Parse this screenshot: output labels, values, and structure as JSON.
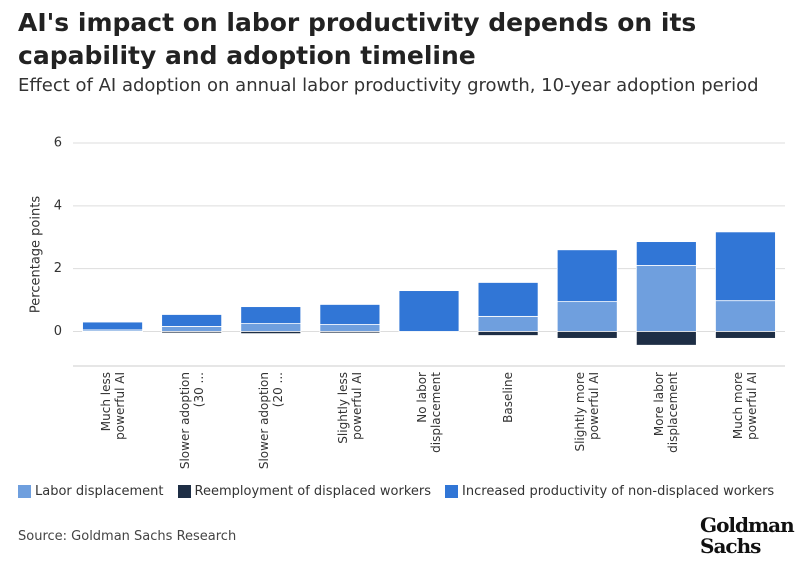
{
  "chart_data": {
    "type": "stacked_bar",
    "title": "AI's impact on labor productivity depends on its capability and adoption timeline",
    "subtitle": "Effect of AI adoption on annual labor productivity growth, 10-year adoption period",
    "y_label": "Percentage points",
    "source": "Source: Goldman Sachs Research",
    "logo": [
      "Goldman",
      "Sachs"
    ],
    "categories": [
      "Much less powerful AI",
      "Slower adoption (30 ...",
      "Slower adoption (20 ...",
      "Slightly less powerful AI",
      "No labor displacement",
      "Baseline",
      "Slightly more powerful AI",
      "More labor displacement",
      "Much more powerful AI"
    ],
    "series": [
      {
        "name": "Labor displacement",
        "color": "#6f9fde",
        "values": [
          0.05,
          0.16,
          0.25,
          0.22,
          0,
          0.48,
          0.95,
          2.1,
          0.98
        ]
      },
      {
        "name": "Reemployment of displaced workers",
        "color": "#1e2e45",
        "values": [
          -0.02,
          -0.05,
          -0.07,
          -0.05,
          0,
          -0.13,
          -0.22,
          -0.44,
          -0.22
        ]
      },
      {
        "name": "Increased productivity of non-displaced workers",
        "color": "#3176d6",
        "values": [
          0.25,
          0.38,
          0.54,
          0.64,
          1.3,
          1.08,
          1.65,
          0.76,
          2.19
        ]
      }
    ],
    "ylim": [
      -1.1,
      6
    ],
    "yticks": [
      0,
      2,
      4,
      6
    ],
    "grid": true
  }
}
